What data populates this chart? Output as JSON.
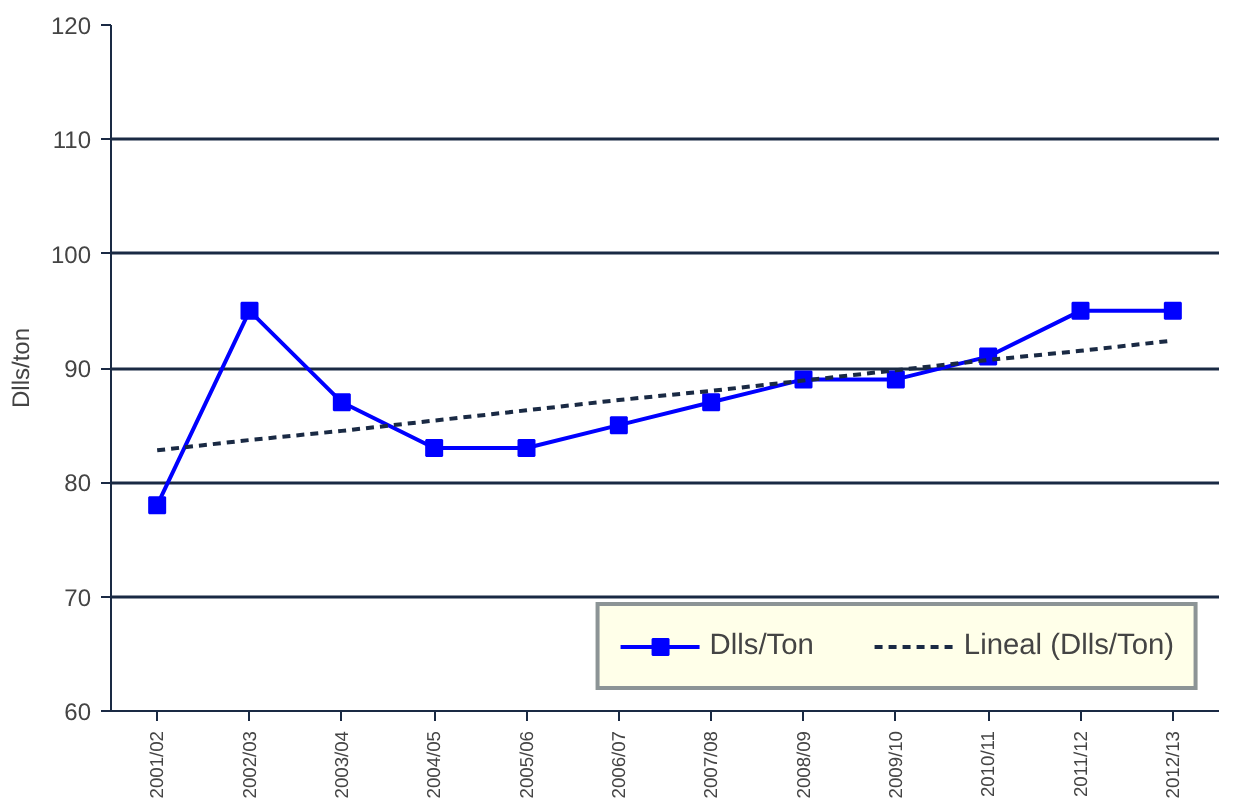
{
  "chart_data": {
    "type": "line",
    "ylabel": "Dlls/ton",
    "categories": [
      "2001/02",
      "2002/03",
      "2003/04",
      "2004/05",
      "2005/06",
      "2006/07",
      "2007/08",
      "2008/09",
      "2009/10",
      "2010/11",
      "2011/12",
      "2012/13"
    ],
    "series": [
      {
        "name": "Dlls/Ton",
        "color": "#0000ff",
        "marker": "square",
        "line_style": "solid",
        "values": [
          78,
          95,
          87,
          83,
          83,
          85,
          87,
          89,
          89,
          91,
          95,
          95
        ]
      },
      {
        "name": "Lineal (Dlls/Ton)",
        "color": "#1a2a44",
        "marker": "none",
        "line_style": "dashed",
        "values": [
          82.8,
          83.7,
          84.5,
          85.4,
          86.3,
          87.2,
          88.0,
          88.9,
          89.8,
          90.7,
          91.5,
          92.4
        ]
      }
    ],
    "ylim": [
      60,
      120
    ],
    "yticks": [
      60,
      70,
      80,
      90,
      100,
      110,
      120
    ],
    "grid": "y",
    "legend": "bottom right"
  }
}
